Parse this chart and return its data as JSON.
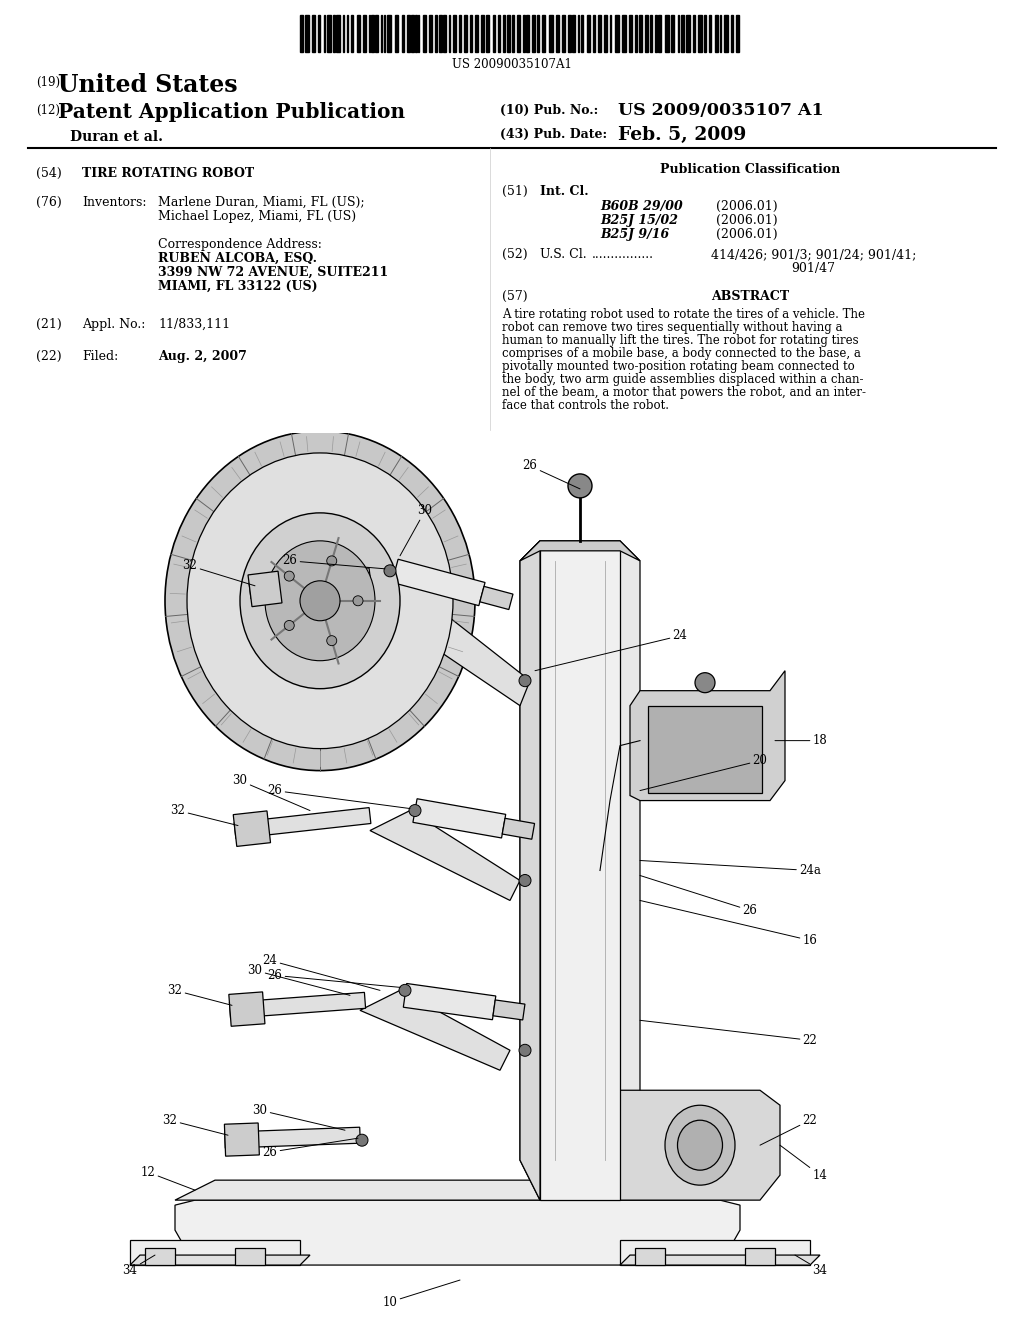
{
  "background_color": "#ffffff",
  "page_width": 10.24,
  "page_height": 13.2,
  "barcode_text": "US 20090035107A1",
  "patent_number_label": "(19)",
  "patent_number_title": "United States",
  "pub_type_label": "(12)",
  "pub_type_title": "Patent Application Publication",
  "pub_num_label": "(10) Pub. No.:",
  "pub_num_value": "US 2009/0035107 A1",
  "pub_date_label": "(43) Pub. Date:",
  "pub_date_value": "Feb. 5, 2009",
  "inventors_line": "Duran et al.",
  "title_label": "(54)",
  "title_value": "TIRE ROTATING ROBOT",
  "inventors_label": "(76)",
  "inventors_key": "Inventors:",
  "inventors_value1": "Marlene Duran, Miami, FL (US);",
  "inventors_value2": "Michael Lopez, Miami, FL (US)",
  "correspondence_label": "Correspondence Address:",
  "correspondence_line1": "RUBEN ALCOBA, ESQ.",
  "correspondence_line2": "3399 NW 72 AVENUE, SUITE211",
  "correspondence_line3": "MIAMI, FL 33122 (US)",
  "appl_label": "(21)",
  "appl_key": "Appl. No.:",
  "appl_value": "11/833,111",
  "filed_label": "(22)",
  "filed_key": "Filed:",
  "filed_value": "Aug. 2, 2007",
  "pub_class_title": "Publication Classification",
  "intcl_label": "(51)",
  "intcl_key": "Int. Cl.",
  "intcl_line1_class": "B60B 29/00",
  "intcl_line1_year": "(2006.01)",
  "intcl_line2_class": "B25J 15/02",
  "intcl_line2_year": "(2006.01)",
  "intcl_line3_class": "B25J 9/16",
  "intcl_line3_year": "(2006.01)",
  "uscl_label": "(52)",
  "uscl_key": "U.S. Cl.",
  "uscl_dots": "................",
  "uscl_value1": "414/426; 901/3; 901/24; 901/41;",
  "uscl_value2": "901/47",
  "abstract_label": "(57)",
  "abstract_title": "ABSTRACT",
  "abstract_line1": "A tire rotating robot used to rotate the tires of a vehicle. The",
  "abstract_line2": "robot can remove two tires sequentially without having a",
  "abstract_line3": "human to manually lift the tires. The robot for rotating tires",
  "abstract_line4": "comprises of a mobile base, a body connected to the base, a",
  "abstract_line5": "pivotally mounted two-position rotating beam connected to",
  "abstract_line6": "the body, two arm guide assemblies displaced within a chan-",
  "abstract_line7": "nel of the beam, a motor that powers the robot, and an inter-",
  "abstract_line8": "face that controls the robot."
}
